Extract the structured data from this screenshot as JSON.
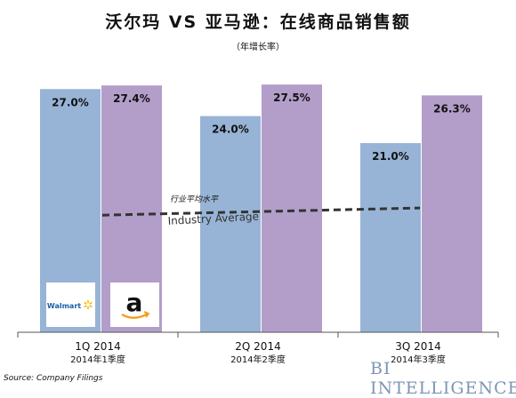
{
  "title": "沃尔玛 VS 亚马逊：在线商品销售额",
  "subtitle": "（年增长率）",
  "source": "Source: Company Filings",
  "brand": "BI INTELLIGENCE",
  "colors": {
    "walmart": "#97b4d6",
    "amazon": "#b39ec9",
    "baseline": "#555555",
    "line": "#333333"
  },
  "logos": {
    "walmart": "Walmart",
    "amazon": "a"
  },
  "chart_data": {
    "type": "bar",
    "title": "沃尔玛 VS 亚马逊：在线商品销售额",
    "subtitle": "（年增长率）",
    "categories": [
      "1Q 2014",
      "2Q 2014",
      "3Q 2014"
    ],
    "categories_sub": [
      "2014年1季度",
      "2014年2季度",
      "2014年3季度"
    ],
    "series": [
      {
        "name": "Walmart",
        "values": [
          27.0,
          24.0,
          21.0
        ],
        "labels": [
          "27.0%",
          "24.0%",
          "21.0%"
        ]
      },
      {
        "name": "Amazon",
        "values": [
          27.4,
          27.5,
          26.3
        ],
        "labels": [
          "27.4%",
          "27.5%",
          "26.3%"
        ]
      }
    ],
    "industry_average": {
      "label_en": "Industry Average",
      "label_cn": "行业平均水平",
      "start": 13.0,
      "end": 13.8
    },
    "ylim": [
      0,
      28.8
    ],
    "grid": false,
    "legend": "logos in first bar group"
  }
}
